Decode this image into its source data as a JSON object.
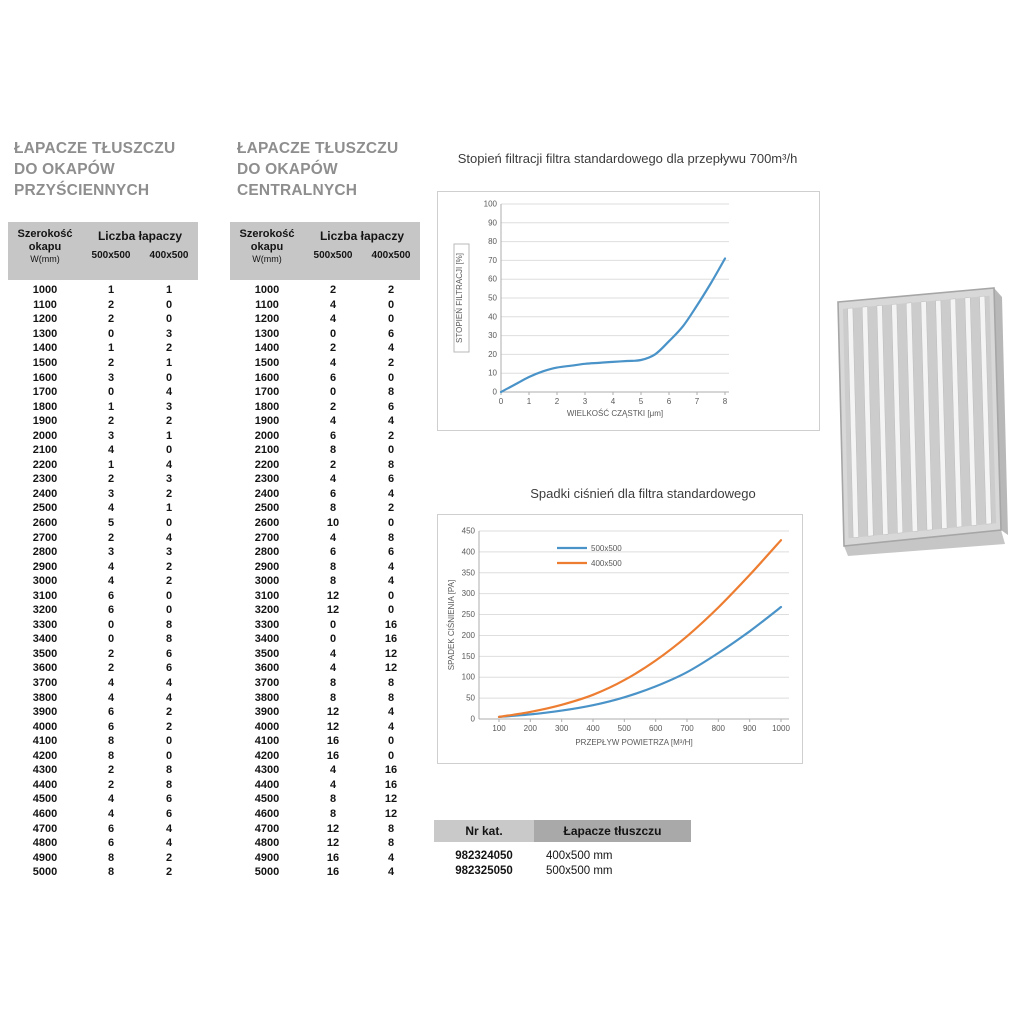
{
  "page": {
    "background": "#ffffff"
  },
  "colors": {
    "accent_blue": "#4a93c8",
    "accent_orange": "#ed7d31",
    "table_header_bg": "#c6c6c6",
    "catalog_col1_bg": "#c9c9c9",
    "catalog_col2_bg": "#a9a9a9",
    "heading_text": "#8e8e8e"
  },
  "tables": {
    "wall": {
      "title1": "ŁAPACZE TŁUSZCZU",
      "title2": "DO OKAPÓW",
      "title3": "PRZYŚCIENNYCH",
      "h_szer": "Szerokość",
      "h_okapu": "okapu",
      "h_w": "W(mm)",
      "h_liczba": "Liczba łapaczy",
      "h_sub1": "500x500",
      "h_sub2": "400x500",
      "rows": [
        [
          1000,
          1,
          1
        ],
        [
          1100,
          2,
          0
        ],
        [
          1200,
          2,
          0
        ],
        [
          1300,
          0,
          3
        ],
        [
          1400,
          1,
          2
        ],
        [
          1500,
          2,
          1
        ],
        [
          1600,
          3,
          0
        ],
        [
          1700,
          0,
          4
        ],
        [
          1800,
          1,
          3
        ],
        [
          1900,
          2,
          2
        ],
        [
          2000,
          3,
          1
        ],
        [
          2100,
          4,
          0
        ],
        [
          2200,
          1,
          4
        ],
        [
          2300,
          2,
          3
        ],
        [
          2400,
          3,
          2
        ],
        [
          2500,
          4,
          1
        ],
        [
          2600,
          5,
          0
        ],
        [
          2700,
          2,
          4
        ],
        [
          2800,
          3,
          3
        ],
        [
          2900,
          4,
          2
        ],
        [
          3000,
          4,
          2
        ],
        [
          3100,
          6,
          0
        ],
        [
          3200,
          6,
          0
        ],
        [
          3300,
          0,
          8
        ],
        [
          3400,
          0,
          8
        ],
        [
          3500,
          2,
          6
        ],
        [
          3600,
          2,
          6
        ],
        [
          3700,
          4,
          4
        ],
        [
          3800,
          4,
          4
        ],
        [
          3900,
          6,
          2
        ],
        [
          4000,
          6,
          2
        ],
        [
          4100,
          8,
          0
        ],
        [
          4200,
          8,
          0
        ],
        [
          4300,
          2,
          8
        ],
        [
          4400,
          2,
          8
        ],
        [
          4500,
          4,
          6
        ],
        [
          4600,
          4,
          6
        ],
        [
          4700,
          6,
          4
        ],
        [
          4800,
          6,
          4
        ],
        [
          4900,
          8,
          2
        ],
        [
          5000,
          8,
          2
        ]
      ]
    },
    "central": {
      "title1": "ŁAPACZE TŁUSZCZU",
      "title2": "DO OKAPÓW",
      "title3": "CENTRALNYCH",
      "h_szer": "Szerokość",
      "h_okapu": "okapu",
      "h_w": "W(mm)",
      "h_liczba": "Liczba łapaczy",
      "h_sub1": "500x500",
      "h_sub2": "400x500",
      "rows": [
        [
          1000,
          2,
          2
        ],
        [
          1100,
          4,
          0
        ],
        [
          1200,
          4,
          0
        ],
        [
          1300,
          0,
          6
        ],
        [
          1400,
          2,
          4
        ],
        [
          1500,
          4,
          2
        ],
        [
          1600,
          6,
          0
        ],
        [
          1700,
          0,
          8
        ],
        [
          1800,
          2,
          6
        ],
        [
          1900,
          4,
          4
        ],
        [
          2000,
          6,
          2
        ],
        [
          2100,
          8,
          0
        ],
        [
          2200,
          2,
          8
        ],
        [
          2300,
          4,
          6
        ],
        [
          2400,
          6,
          4
        ],
        [
          2500,
          8,
          2
        ],
        [
          2600,
          10,
          0
        ],
        [
          2700,
          4,
          8
        ],
        [
          2800,
          6,
          6
        ],
        [
          2900,
          8,
          4
        ],
        [
          3000,
          8,
          4
        ],
        [
          3100,
          12,
          0
        ],
        [
          3200,
          12,
          0
        ],
        [
          3300,
          0,
          16
        ],
        [
          3400,
          0,
          16
        ],
        [
          3500,
          4,
          12
        ],
        [
          3600,
          4,
          12
        ],
        [
          3700,
          8,
          8
        ],
        [
          3800,
          8,
          8
        ],
        [
          3900,
          12,
          4
        ],
        [
          4000,
          12,
          4
        ],
        [
          4100,
          16,
          0
        ],
        [
          4200,
          16,
          0
        ],
        [
          4300,
          4,
          16
        ],
        [
          4400,
          4,
          16
        ],
        [
          4500,
          8,
          12
        ],
        [
          4600,
          8,
          12
        ],
        [
          4700,
          12,
          8
        ],
        [
          4800,
          12,
          8
        ],
        [
          4900,
          16,
          4
        ],
        [
          5000,
          16,
          4
        ]
      ]
    }
  },
  "chart_data": [
    {
      "id": "filtration",
      "type": "line",
      "title": "Stopień filtracji filtra standardowego dla przepływu 700m³/h",
      "xlabel": "WIELKOŚĆ CZĄSTKI [μm]",
      "ylabel": "STOPIEŃ FILTRACJI [%]",
      "xlim": [
        0,
        8
      ],
      "ylim": [
        0,
        100
      ],
      "xticks": [
        0,
        1,
        2,
        3,
        4,
        5,
        6,
        7,
        8
      ],
      "yticks": [
        0,
        10,
        20,
        30,
        40,
        50,
        60,
        70,
        80,
        90,
        100
      ],
      "grid": "horizontal",
      "legend_visible": false,
      "series": [
        {
          "name": "stopień filtracji",
          "color": "#4a93c8",
          "x": [
            0,
            0.5,
            1,
            1.5,
            2,
            2.5,
            3,
            3.5,
            4,
            4.5,
            5,
            5.5,
            6,
            6.5,
            7,
            7.5,
            8
          ],
          "y": [
            0,
            4,
            8,
            11,
            13,
            14,
            15,
            15.5,
            16,
            16.5,
            17,
            20,
            27,
            35,
            46,
            58,
            71
          ]
        }
      ]
    },
    {
      "id": "pressure",
      "type": "line",
      "title": "Spadki ciśnień dla filtra standardowego",
      "xlabel": "PRZEPŁYW POWIETRZA [M³/H]",
      "ylabel": "SPADEK CIŚNIENIA [PA]",
      "xlim": [
        100,
        1000
      ],
      "ylim": [
        0,
        450
      ],
      "xticks": [
        100,
        200,
        300,
        400,
        500,
        600,
        700,
        800,
        900,
        1000
      ],
      "yticks": [
        0,
        50,
        100,
        150,
        200,
        250,
        300,
        350,
        400,
        450
      ],
      "grid": "horizontal",
      "legend_visible": true,
      "legend_position": "top-center-inside",
      "series": [
        {
          "name": "500x500",
          "color": "#4a93c8",
          "x": [
            100,
            200,
            300,
            400,
            500,
            600,
            700,
            800,
            900,
            1000
          ],
          "y": [
            5,
            11,
            20,
            33,
            52,
            78,
            112,
            158,
            210,
            268
          ]
        },
        {
          "name": "400x500",
          "color": "#ed7d31",
          "x": [
            100,
            200,
            300,
            400,
            500,
            600,
            700,
            800,
            900,
            1000
          ],
          "y": [
            5,
            17,
            34,
            58,
            93,
            140,
            198,
            267,
            345,
            428
          ]
        }
      ]
    }
  ],
  "catalog": {
    "col1_header": "Nr kat.",
    "col2_header": "Łapacze tłuszczu",
    "rows": [
      [
        "982324050",
        "400x500 mm"
      ],
      [
        "982325050",
        "500x500 mm"
      ]
    ]
  }
}
